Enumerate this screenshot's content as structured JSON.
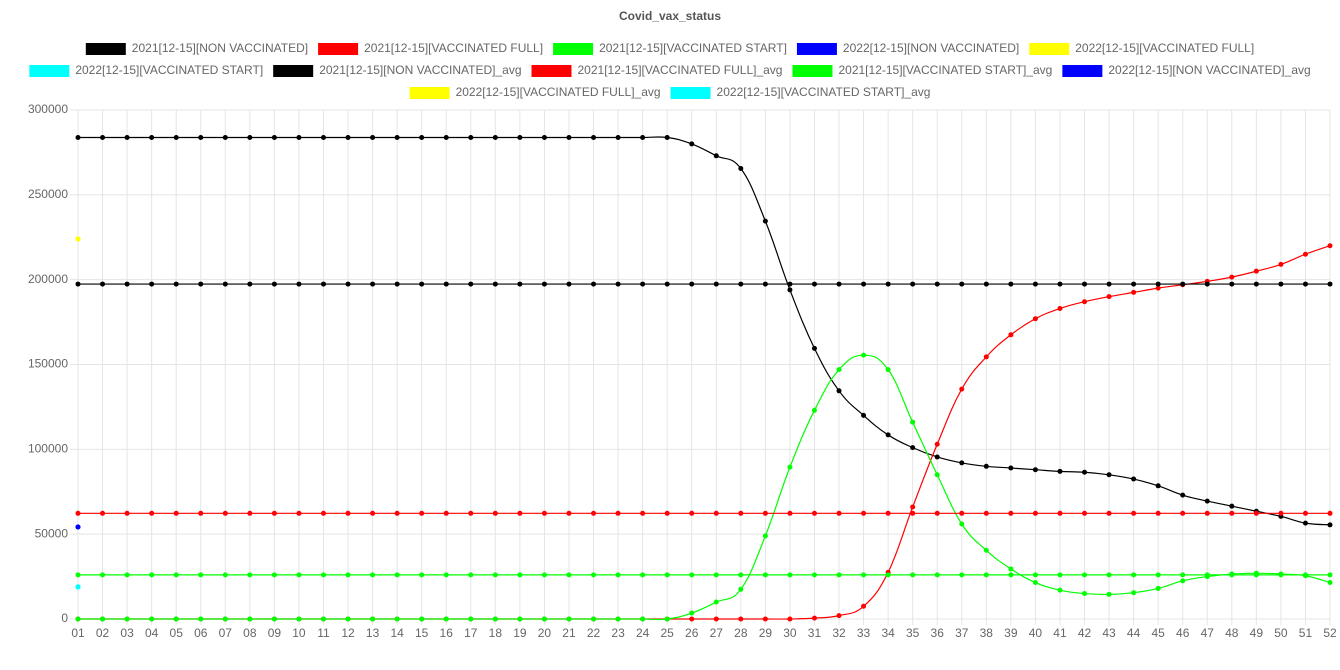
{
  "chart_data": {
    "type": "line",
    "title": "Covid_vax_status",
    "categories": [
      "01",
      "02",
      "03",
      "04",
      "05",
      "06",
      "07",
      "08",
      "09",
      "10",
      "11",
      "12",
      "13",
      "14",
      "15",
      "16",
      "17",
      "18",
      "19",
      "20",
      "21",
      "22",
      "23",
      "24",
      "25",
      "26",
      "27",
      "28",
      "29",
      "30",
      "31",
      "32",
      "33",
      "34",
      "35",
      "36",
      "37",
      "38",
      "39",
      "40",
      "41",
      "42",
      "43",
      "44",
      "45",
      "46",
      "47",
      "48",
      "49",
      "50",
      "51",
      "52"
    ],
    "ylim": [
      0,
      300000
    ],
    "yticks": [
      0,
      50000,
      100000,
      150000,
      200000,
      250000,
      300000
    ],
    "grid": true,
    "legend": "top",
    "series": [
      {
        "name": "2021[12-15][NON VACCINATED]",
        "color": "#000000",
        "values": [
          283800,
          283800,
          283800,
          283800,
          283800,
          283800,
          283800,
          283800,
          283800,
          283800,
          283800,
          283800,
          283800,
          283800,
          283800,
          283800,
          283800,
          283800,
          283800,
          283800,
          283800,
          283800,
          283800,
          283800,
          283800,
          280000,
          273000,
          265500,
          234500,
          194000,
          159500,
          134500,
          120000,
          108500,
          101000,
          95500,
          92000,
          90000,
          89000,
          88000,
          87000,
          86500,
          85000,
          82500,
          78500,
          73000,
          69500,
          66500,
          63500,
          60500,
          56500,
          55500
        ]
      },
      {
        "name": "2021[12-15][VACCINATED FULL]",
        "color": "#ff0000",
        "values": [
          0,
          0,
          0,
          0,
          0,
          0,
          0,
          0,
          0,
          0,
          0,
          0,
          0,
          0,
          0,
          0,
          0,
          0,
          0,
          0,
          0,
          0,
          0,
          0,
          0,
          0,
          0,
          0,
          0,
          0,
          500,
          2000,
          7500,
          27500,
          66000,
          103000,
          135500,
          154500,
          167500,
          177000,
          183000,
          187000,
          190000,
          192500,
          195000,
          197000,
          199000,
          201500,
          205000,
          209000,
          215000,
          220000
        ]
      },
      {
        "name": "2021[12-15][VACCINATED START]",
        "color": "#00ff00",
        "values": [
          0,
          0,
          0,
          0,
          0,
          0,
          0,
          0,
          0,
          0,
          0,
          0,
          0,
          0,
          0,
          0,
          0,
          0,
          0,
          0,
          0,
          0,
          0,
          0,
          0,
          3500,
          10000,
          17500,
          49000,
          89500,
          123000,
          147000,
          155500,
          147000,
          116000,
          85000,
          56000,
          40500,
          29500,
          21500,
          17000,
          15000,
          14500,
          15500,
          18000,
          22500,
          25000,
          26500,
          27000,
          26500,
          25500,
          21500
        ]
      },
      {
        "name": "2022[12-15][NON VACCINATED]",
        "color": "#0000ff",
        "values": [
          54200,
          null,
          null,
          null,
          null,
          null,
          null,
          null,
          null,
          null,
          null,
          null,
          null,
          null,
          null,
          null,
          null,
          null,
          null,
          null,
          null,
          null,
          null,
          null,
          null,
          null,
          null,
          null,
          null,
          null,
          null,
          null,
          null,
          null,
          null,
          null,
          null,
          null,
          null,
          null,
          null,
          null,
          null,
          null,
          null,
          null,
          null,
          null,
          null,
          null,
          null,
          null
        ]
      },
      {
        "name": "2022[12-15][VACCINATED FULL]",
        "color": "#ffff00",
        "values": [
          224000,
          null,
          null,
          null,
          null,
          null,
          null,
          null,
          null,
          null,
          null,
          null,
          null,
          null,
          null,
          null,
          null,
          null,
          null,
          null,
          null,
          null,
          null,
          null,
          null,
          null,
          null,
          null,
          null,
          null,
          null,
          null,
          null,
          null,
          null,
          null,
          null,
          null,
          null,
          null,
          null,
          null,
          null,
          null,
          null,
          null,
          null,
          null,
          null,
          null,
          null,
          null
        ]
      },
      {
        "name": "2022[12-15][VACCINATED START]",
        "color": "#00ffff",
        "values": [
          18900,
          null,
          null,
          null,
          null,
          null,
          null,
          null,
          null,
          null,
          null,
          null,
          null,
          null,
          null,
          null,
          null,
          null,
          null,
          null,
          null,
          null,
          null,
          null,
          null,
          null,
          null,
          null,
          null,
          null,
          null,
          null,
          null,
          null,
          null,
          null,
          null,
          null,
          null,
          null,
          null,
          null,
          null,
          null,
          null,
          null,
          null,
          null,
          null,
          null,
          null,
          null
        ]
      },
      {
        "name": "2021[12-15][NON VACCINATED]_avg",
        "color": "#000000",
        "values": [
          197400,
          197400,
          197400,
          197400,
          197400,
          197400,
          197400,
          197400,
          197400,
          197400,
          197400,
          197400,
          197400,
          197400,
          197400,
          197400,
          197400,
          197400,
          197400,
          197400,
          197400,
          197400,
          197400,
          197400,
          197400,
          197400,
          197400,
          197400,
          197400,
          197400,
          197400,
          197400,
          197400,
          197400,
          197400,
          197400,
          197400,
          197400,
          197400,
          197400,
          197400,
          197400,
          197400,
          197400,
          197400,
          197400,
          197400,
          197400,
          197400,
          197400,
          197400,
          197400
        ]
      },
      {
        "name": "2021[12-15][VACCINATED FULL]_avg",
        "color": "#ff0000",
        "values": [
          62300,
          62300,
          62300,
          62300,
          62300,
          62300,
          62300,
          62300,
          62300,
          62300,
          62300,
          62300,
          62300,
          62300,
          62300,
          62300,
          62300,
          62300,
          62300,
          62300,
          62300,
          62300,
          62300,
          62300,
          62300,
          62300,
          62300,
          62300,
          62300,
          62300,
          62300,
          62300,
          62300,
          62300,
          62300,
          62300,
          62300,
          62300,
          62300,
          62300,
          62300,
          62300,
          62300,
          62300,
          62300,
          62300,
          62300,
          62300,
          62300,
          62300,
          62300,
          62300
        ]
      },
      {
        "name": "2021[12-15][VACCINATED START]_avg",
        "color": "#00ff00",
        "values": [
          26000,
          26000,
          26000,
          26000,
          26000,
          26000,
          26000,
          26000,
          26000,
          26000,
          26000,
          26000,
          26000,
          26000,
          26000,
          26000,
          26000,
          26000,
          26000,
          26000,
          26000,
          26000,
          26000,
          26000,
          26000,
          26000,
          26000,
          26000,
          26000,
          26000,
          26000,
          26000,
          26000,
          26000,
          26000,
          26000,
          26000,
          26000,
          26000,
          26000,
          26000,
          26000,
          26000,
          26000,
          26000,
          26000,
          26000,
          26000,
          26000,
          26000,
          26000,
          26000
        ]
      },
      {
        "name": "2022[12-15][NON VACCINATED]_avg",
        "color": "#0000ff",
        "values": [
          54200,
          null,
          null,
          null,
          null,
          null,
          null,
          null,
          null,
          null,
          null,
          null,
          null,
          null,
          null,
          null,
          null,
          null,
          null,
          null,
          null,
          null,
          null,
          null,
          null,
          null,
          null,
          null,
          null,
          null,
          null,
          null,
          null,
          null,
          null,
          null,
          null,
          null,
          null,
          null,
          null,
          null,
          null,
          null,
          null,
          null,
          null,
          null,
          null,
          null,
          null,
          null
        ]
      },
      {
        "name": "2022[12-15][VACCINATED FULL]_avg",
        "color": "#ffff00",
        "values": [
          224000,
          null,
          null,
          null,
          null,
          null,
          null,
          null,
          null,
          null,
          null,
          null,
          null,
          null,
          null,
          null,
          null,
          null,
          null,
          null,
          null,
          null,
          null,
          null,
          null,
          null,
          null,
          null,
          null,
          null,
          null,
          null,
          null,
          null,
          null,
          null,
          null,
          null,
          null,
          null,
          null,
          null,
          null,
          null,
          null,
          null,
          null,
          null,
          null,
          null,
          null,
          null
        ]
      },
      {
        "name": "2022[12-15][VACCINATED START]_avg",
        "color": "#00ffff",
        "values": [
          18900,
          null,
          null,
          null,
          null,
          null,
          null,
          null,
          null,
          null,
          null,
          null,
          null,
          null,
          null,
          null,
          null,
          null,
          null,
          null,
          null,
          null,
          null,
          null,
          null,
          null,
          null,
          null,
          null,
          null,
          null,
          null,
          null,
          null,
          null,
          null,
          null,
          null,
          null,
          null,
          null,
          null,
          null,
          null,
          null,
          null,
          null,
          null,
          null,
          null,
          null,
          null
        ]
      }
    ]
  }
}
